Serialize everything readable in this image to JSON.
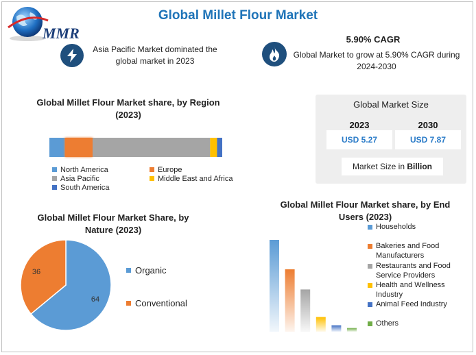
{
  "logo": {
    "text": "MMR"
  },
  "title": "Global Millet Flour Market",
  "headline_left": {
    "text": "Asia Pacific Market dominated the global market in 2023",
    "icon": "lightning-icon"
  },
  "headline_right": {
    "title": "5.90% CAGR",
    "text": "Global Market to grow at 5.90% CAGR during 2024-2030",
    "icon": "flame-icon"
  },
  "market_size": {
    "title": "Global Market Size",
    "years": [
      "2023",
      "2030"
    ],
    "values": [
      "USD 5.27",
      "USD 7.87"
    ],
    "note_prefix": "Market Size in ",
    "note_bold": "Billion"
  },
  "colors": {
    "north_america": "#5b9bd5",
    "europe": "#ed7d31",
    "asia_pacific": "#a5a5a5",
    "mea": "#ffc000",
    "south_america": "#4472c4",
    "others": "#70ad47"
  },
  "chart_data": [
    {
      "type": "bar",
      "orientation": "horizontal-stacked",
      "title": "Global Millet Flour Market share, by Region (2023)",
      "categories": [
        "North America",
        "Europe",
        "Asia Pacific",
        "Middle East and Africa",
        "South America"
      ],
      "values": [
        9,
        16,
        68,
        4,
        3
      ],
      "legend_placement": "bottom"
    },
    {
      "type": "pie",
      "title": "Global Millet Flour Market Share, by Nature (2023)",
      "categories": [
        "Organic",
        "Conventional"
      ],
      "values": [
        64,
        36
      ],
      "legend_placement": "right"
    },
    {
      "type": "bar",
      "title": "Global Millet Flour Market share, by End Users (2023)",
      "categories": [
        "Households",
        "Bakeries and Food Manufacturers",
        "Restaurants and Food Service Providers",
        "Health and Wellness Industry",
        "Animal Feed Industry",
        "Others"
      ],
      "values": [
        100,
        68,
        46,
        16,
        7,
        4
      ],
      "legend_placement": "right"
    }
  ]
}
